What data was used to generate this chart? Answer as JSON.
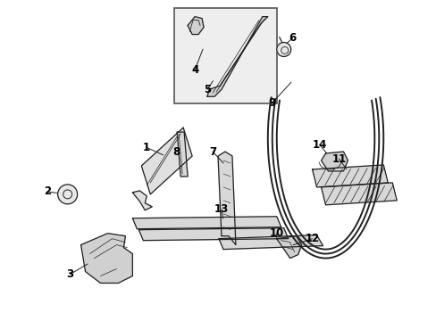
{
  "bg_color": "#ffffff",
  "line_color": "#222222",
  "label_color": "#000000",
  "label_fontsize": 8.5,
  "fig_width": 4.89,
  "fig_height": 3.6,
  "dpi": 100
}
